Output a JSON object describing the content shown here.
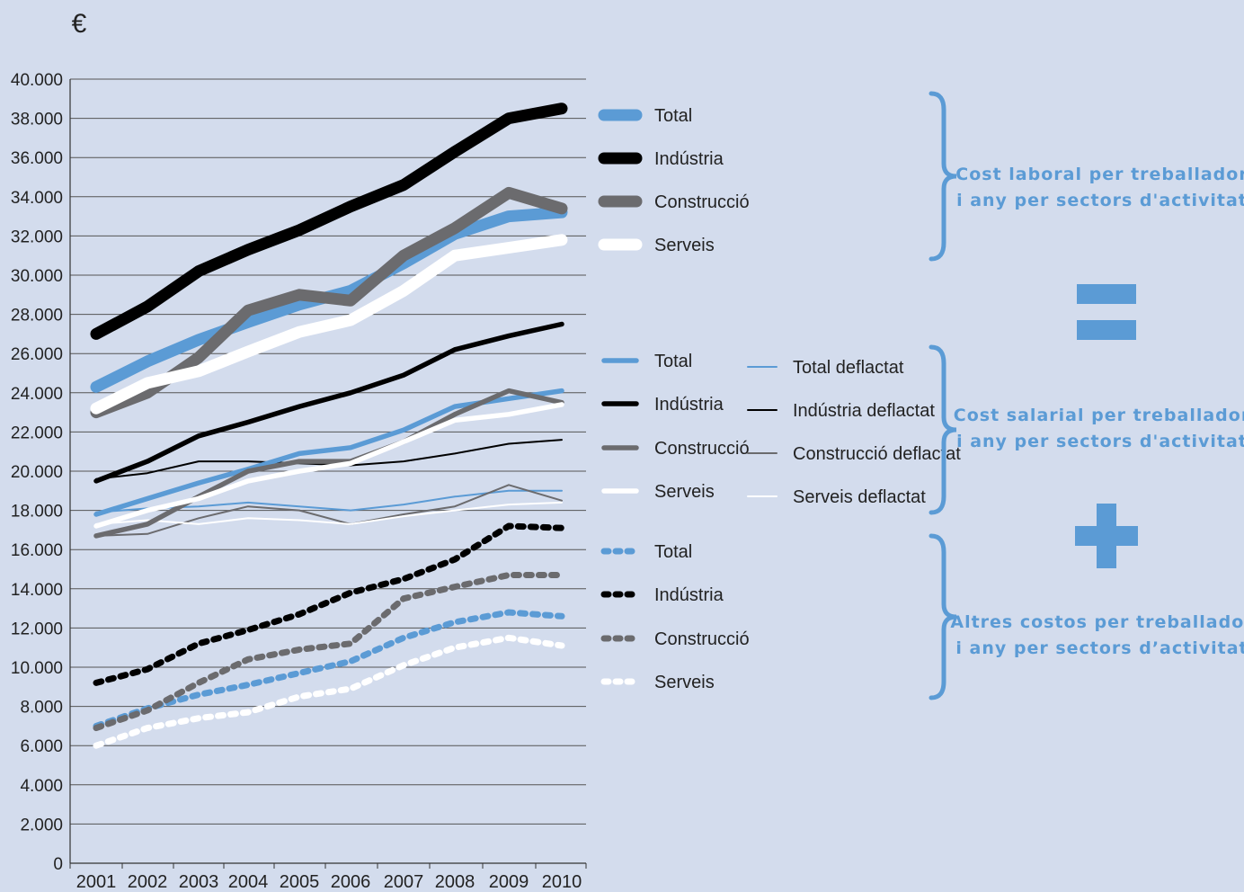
{
  "chart_data": {
    "type": "line",
    "unit_label": "€",
    "x": [
      "2001",
      "2002",
      "2003",
      "2004",
      "2005",
      "2006",
      "2007",
      "2008",
      "2009",
      "2010"
    ],
    "yticks": [
      "0",
      "2.000",
      "4.000",
      "6.000",
      "8.000",
      "10.000",
      "12.000",
      "14.000",
      "16.000",
      "18.000",
      "20.000",
      "22.000",
      "24.000",
      "26.000",
      "28.000",
      "30.000",
      "32.000",
      "34.000",
      "36.000",
      "38.000",
      "40.000"
    ],
    "ylim": [
      0,
      40000
    ],
    "grid": "horizontal",
    "groups": [
      {
        "note_lines": [
          "Cost  laboral per treballador",
          "i any per sectors d'activitat"
        ],
        "series": [
          {
            "name": "Total",
            "color": "#5b9bd5",
            "style": "thick",
            "values": [
              24300,
              25600,
              26700,
              27600,
              28500,
              29200,
              30600,
              32100,
              33000,
              33200
            ]
          },
          {
            "name": "Indústria",
            "color": "#000000",
            "style": "thick",
            "values": [
              27000,
              28400,
              30200,
              31300,
              32300,
              33500,
              34600,
              36300,
              38000,
              38500
            ]
          },
          {
            "name": "Construcció",
            "color": "#6b6b6e",
            "style": "thick",
            "values": [
              23000,
              24000,
              25800,
              28200,
              29000,
              28700,
              31000,
              32400,
              34200,
              33400
            ]
          },
          {
            "name": "Serveis",
            "color": "#ffffff",
            "style": "thick",
            "values": [
              23200,
              24500,
              25100,
              26100,
              27100,
              27700,
              29200,
              31000,
              31400,
              31800
            ]
          }
        ]
      },
      {
        "note_lines": [
          "Cost  salarial per treballador",
          "i any per sectors d'activitat"
        ],
        "series": [
          {
            "name": "Total",
            "color": "#5b9bd5",
            "style": "medium",
            "values": [
              17800,
              18600,
              19400,
              20100,
              20900,
              21200,
              22100,
              23300,
              23700,
              24100
            ]
          },
          {
            "name": "Indústria",
            "color": "#000000",
            "style": "medium",
            "values": [
              19500,
              20500,
              21800,
              22500,
              23300,
              24000,
              24900,
              26200,
              26900,
              27500
            ]
          },
          {
            "name": "Construcció",
            "color": "#6b6b6e",
            "style": "medium",
            "values": [
              16700,
              17300,
              18700,
              20000,
              20500,
              20500,
              21500,
              22900,
              24100,
              23500
            ]
          },
          {
            "name": "Serveis",
            "color": "#ffffff",
            "style": "medium",
            "values": [
              17200,
              18000,
              18600,
              19500,
              20000,
              20400,
              21500,
              22600,
              22900,
              23400
            ]
          },
          {
            "name": "Total deflactat",
            "color": "#5b9bd5",
            "style": "thin",
            "values": [
              17900,
              18100,
              18200,
              18400,
              18200,
              18000,
              18300,
              18700,
              19000,
              19000
            ]
          },
          {
            "name": "Indústria deflactat",
            "color": "#000000",
            "style": "thin",
            "values": [
              19600,
              19900,
              20500,
              20500,
              20400,
              20300,
              20500,
              20900,
              21400,
              21600
            ]
          },
          {
            "name": "Construcció deflactat",
            "color": "#6b6b6e",
            "style": "thin",
            "values": [
              16700,
              16800,
              17600,
              18200,
              18000,
              17300,
              17800,
              18200,
              19300,
              18500
            ]
          },
          {
            "name": "Serveis deflactat",
            "color": "#ffffff",
            "style": "thin",
            "values": [
              17300,
              17500,
              17300,
              17600,
              17500,
              17300,
              17700,
              18000,
              18300,
              18400
            ]
          }
        ]
      },
      {
        "note_lines": [
          "Altres costos per treballador",
          "i any per sectors d’activitat"
        ],
        "series": [
          {
            "name": "Total",
            "color": "#5b9bd5",
            "style": "dotted",
            "values": [
              7000,
              7900,
              8600,
              9100,
              9700,
              10300,
              11500,
              12300,
              12800,
              12600
            ]
          },
          {
            "name": "Indústria",
            "color": "#000000",
            "style": "dotted",
            "values": [
              9200,
              9900,
              11200,
              11900,
              12700,
              13800,
              14500,
              15500,
              17200,
              17100
            ]
          },
          {
            "name": "Construcció",
            "color": "#6b6b6e",
            "style": "dotted",
            "values": [
              6900,
              7800,
              9200,
              10400,
              10900,
              11200,
              13500,
              14100,
              14700,
              14700
            ]
          },
          {
            "name": "Serveis",
            "color": "#ffffff",
            "style": "dotted",
            "values": [
              6000,
              6900,
              7400,
              7700,
              8500,
              8900,
              10100,
              11000,
              11500,
              11100
            ]
          }
        ]
      }
    ]
  },
  "symbols": {
    "equals": "=",
    "plus": "+",
    "accent_color": "#5b9bd5"
  }
}
